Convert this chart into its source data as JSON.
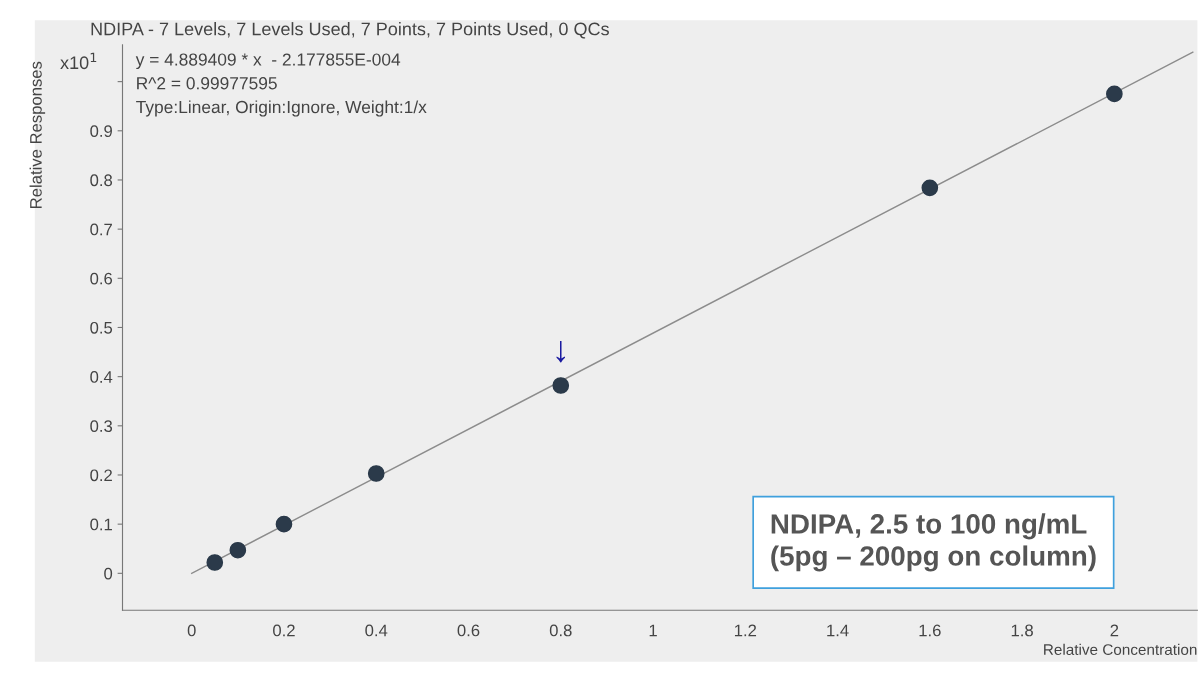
{
  "chart_data": {
    "type": "scatter",
    "title": "NDIPA - 7 Levels, 7 Levels Used, 7 Points, 7 Points Used, 0 QCs",
    "xlabel": "Relative Concentration",
    "ylabel": "Relative Responses",
    "series": [
      {
        "color": "#2b3a4a",
        "marker": "circle",
        "x": [
          0.05,
          0.1,
          0.2,
          0.4,
          0.8,
          1.6,
          2
        ],
        "values": [
          0.022,
          0.047,
          0.1,
          0.203,
          0.382,
          0.784,
          0.975
        ]
      },
      {
        "type": "line",
        "color": "#8c8c8c",
        "marker": "none",
        "line_style": "solid",
        "x": [
          0,
          2.17
        ],
        "values": [
          0,
          1.06
        ]
      }
    ],
    "annotations": [
      "x10$^{1}$",
      "y = 4.889409 * x  - 2.177855E-004",
      "R^2 = 0.99977595",
      "Type:Linear, Origin:Ignore, Weight:1/x",
      "NDIPA, 2.5 to 100 ng/mL\n(5pg – 200pg on column)",
      {
        "text": "↓",
        "x": 0.8,
        "y": 0.382
      }
    ],
    "xlim": [
      -0.15,
      2.18
    ],
    "ylim": [
      -0.075,
      1.075
    ],
    "xticks": [
      0,
      0.2,
      0.4,
      0.6,
      0.8,
      1,
      1.2,
      1.4,
      1.6,
      1.8,
      2
    ],
    "yticks": [
      0,
      0.1,
      0.2,
      0.3,
      0.4,
      0.5,
      0.6,
      0.7,
      0.8,
      0.9,
      {
        "value": 1,
        "label": null
      }
    ],
    "grid": false,
    "legend": false
  }
}
